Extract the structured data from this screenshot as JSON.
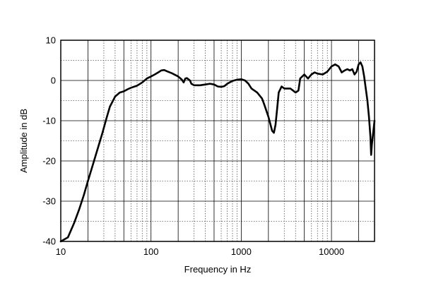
{
  "chart_data": {
    "type": "line",
    "xlabel": "Frequency in Hz",
    "ylabel": "Amplitude in dB",
    "x_scale": "log",
    "xlim": [
      10,
      30000
    ],
    "ylim": [
      -40,
      10
    ],
    "x_ticks": [
      {
        "value": 10,
        "label": "10"
      },
      {
        "value": 100,
        "label": "100"
      },
      {
        "value": 1000,
        "label": "1000"
      },
      {
        "value": 10000,
        "label": "10000"
      }
    ],
    "y_ticks": [
      {
        "value": 10,
        "label": "10"
      },
      {
        "value": 0,
        "label": "0"
      },
      {
        "value": -10,
        "label": "-10"
      },
      {
        "value": -20,
        "label": "-20"
      },
      {
        "value": -30,
        "label": "-30"
      },
      {
        "value": -40,
        "label": "-40"
      }
    ],
    "grid": true,
    "series": [
      {
        "x": [
          10,
          12,
          14,
          16,
          18,
          20,
          23,
          26,
          29,
          32,
          35,
          40,
          45,
          50,
          55,
          60,
          70,
          80,
          90,
          100,
          110,
          120,
          130,
          140,
          150,
          170,
          200,
          220,
          230,
          240,
          250,
          270,
          280,
          300,
          350,
          400,
          450,
          500,
          550,
          600,
          650,
          700,
          800,
          900,
          1000,
          1100,
          1200,
          1300,
          1500,
          1700,
          1800,
          2000,
          2200,
          2300,
          2400,
          2500,
          2600,
          2800,
          3000,
          3500,
          4000,
          4300,
          4500,
          5000,
          5500,
          6000,
          6500,
          7000,
          8000,
          9000,
          10000,
          11000,
          12000,
          13000,
          14000,
          15000,
          16000,
          17000,
          18000,
          19000,
          20000,
          21000,
          22000,
          23000,
          24000,
          25000,
          26000,
          27000,
          27500,
          28000,
          29000,
          30000
        ],
        "y": [
          -40.5,
          -39,
          -35.5,
          -32,
          -28.5,
          -25,
          -20.5,
          -16.5,
          -13,
          -9.5,
          -6.5,
          -4,
          -3,
          -2.7,
          -2.2,
          -1.8,
          -1.3,
          -0.5,
          0.5,
          1,
          1.5,
          2,
          2.5,
          2.6,
          2.3,
          1.8,
          1,
          0.2,
          -0.5,
          0.5,
          0.6,
          0,
          -0.8,
          -1.2,
          -1.2,
          -1,
          -0.8,
          -1,
          -1.5,
          -1.6,
          -1.4,
          -0.8,
          -0.1,
          0.2,
          0.3,
          0,
          -0.8,
          -2,
          -3,
          -4.5,
          -6,
          -9,
          -12.5,
          -13,
          -11,
          -7,
          -3,
          -1.5,
          -2,
          -2,
          -3,
          -2.5,
          0.5,
          1.5,
          0.5,
          1.5,
          2,
          1.7,
          1.5,
          2.2,
          3.5,
          4,
          3.5,
          2,
          2.5,
          2.8,
          2.5,
          2.8,
          1.5,
          2.2,
          4,
          4.5,
          3.5,
          1,
          -2,
          -5,
          -9,
          -14,
          -18.5,
          -16,
          -13,
          -10
        ]
      }
    ]
  }
}
